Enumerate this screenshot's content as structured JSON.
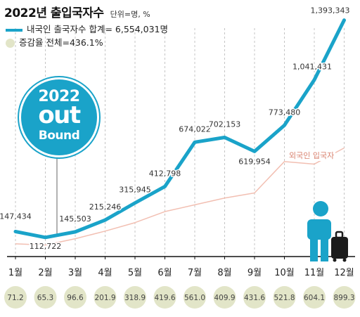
{
  "header": {
    "title": "2022년 출입국자수",
    "unit": "단위=명, %"
  },
  "legend": {
    "outbound_label": "내국인 출국자수 합계= 6,554,031명",
    "growth_label": "증감율 전체=436.1%"
  },
  "badge": {
    "line1": "2022",
    "line2": "out",
    "line3": "Bound"
  },
  "inbound_label": "외국인 입국자",
  "colors": {
    "outbound_line": "#1aa3c9",
    "inbound_line": "#f2bfb2",
    "growth_circle": "#e2e5c8",
    "text": "#333333"
  },
  "chart_data": {
    "type": "line",
    "title": "2022년 출입국자수",
    "categories": [
      "1월",
      "2월",
      "3월",
      "4월",
      "5월",
      "6월",
      "7월",
      "8월",
      "9월",
      "10월",
      "11월",
      "12월"
    ],
    "series": [
      {
        "name": "내국인 출국자수",
        "values": [
          147434,
          112722,
          145503,
          215246,
          315945,
          412798,
          674022,
          702153,
          619954,
          773480,
          1041431,
          1393343
        ],
        "labels": [
          "147,434",
          "112,722",
          "145,503",
          "215,246",
          "315,945",
          "412,798",
          "674,022",
          "702,153",
          "619,954",
          "773,480",
          "1,041,431",
          "1,393,343"
        ]
      },
      {
        "name": "외국인 입국자",
        "values": [
          75000,
          68000,
          105000,
          150000,
          200000,
          265000,
          305000,
          345000,
          375000,
          560000,
          545000,
          640000
        ]
      }
    ],
    "growth_rates": [
      "71.2",
      "65.3",
      "96.6",
      "201.9",
      "318.9",
      "419.6",
      "561.0",
      "409.9",
      "431.6",
      "521.8",
      "604.1",
      "899.3"
    ],
    "ylim": [
      0,
      1450000
    ],
    "grid": "vertical dashed"
  }
}
